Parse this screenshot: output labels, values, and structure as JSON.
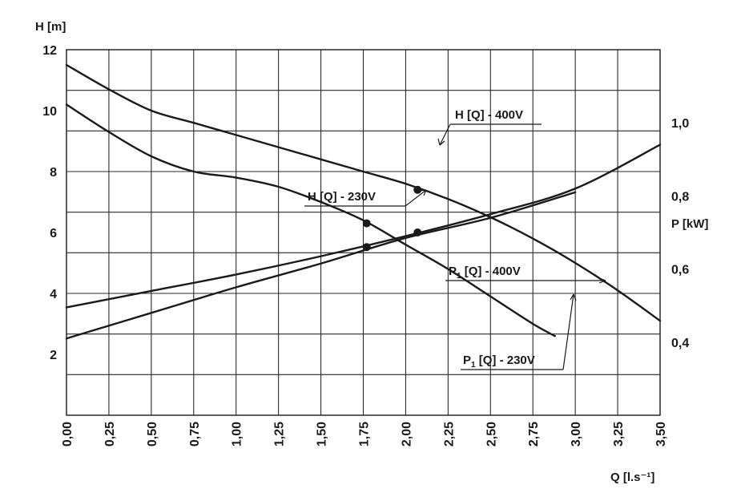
{
  "chart_data": {
    "type": "line",
    "xlabel": "Q [l.s⁻¹]",
    "ylabel_left": "H [m]",
    "ylabel_right": "P [kW]",
    "xlim": [
      0,
      3.5
    ],
    "ylim_left": [
      0,
      12
    ],
    "ylim_right": [
      0.2,
      1.2
    ],
    "grid": true,
    "x_ticks": [
      "0,00",
      "0,25",
      "0,50",
      "0,75",
      "1,00",
      "1,25",
      "1,50",
      "1,75",
      "2,00",
      "2,25",
      "2,50",
      "2,75",
      "3,00",
      "3,25",
      "3,50"
    ],
    "y_ticks_left": [
      "2",
      "4",
      "6",
      "8",
      "10",
      "12"
    ],
    "y_ticks_right": [
      "0,4",
      "0,6",
      "0,8",
      "1,0"
    ],
    "series": [
      {
        "name": "H [Q] - 400V",
        "axis": "left",
        "x": [
          0,
          0.25,
          0.5,
          0.75,
          1.0,
          1.25,
          1.5,
          1.75,
          2.0,
          2.25,
          2.5,
          2.75,
          3.0,
          3.25,
          3.5
        ],
        "y": [
          11.5,
          10.7,
          10.0,
          9.6,
          9.2,
          8.8,
          8.4,
          8.0,
          7.6,
          7.1,
          6.5,
          5.8,
          5.0,
          4.1,
          3.1
        ],
        "markers": [
          {
            "x": 2.07,
            "y": 7.4
          }
        ]
      },
      {
        "name": "H [Q] - 230V",
        "axis": "left",
        "x": [
          0,
          0.25,
          0.5,
          0.75,
          1.0,
          1.25,
          1.5,
          1.75,
          2.0,
          2.25,
          2.5,
          2.75,
          2.88
        ],
        "y": [
          10.2,
          9.3,
          8.5,
          8.0,
          7.8,
          7.5,
          7.0,
          6.4,
          5.6,
          4.8,
          3.9,
          3.0,
          2.6
        ],
        "markers": [
          {
            "x": 1.77,
            "y": 6.3
          }
        ]
      },
      {
        "name": "P1 [Q] - 400V",
        "axis": "right",
        "x": [
          0,
          0.5,
          1.0,
          1.5,
          2.0,
          2.5,
          3.0,
          3.5
        ],
        "y": [
          0.495,
          0.54,
          0.585,
          0.635,
          0.69,
          0.75,
          0.82,
          0.94
        ],
        "markers": [
          {
            "x": 2.07,
            "y": 0.7
          }
        ]
      },
      {
        "name": "P1 [Q] - 230V",
        "axis": "right",
        "x": [
          0,
          0.5,
          1.0,
          1.5,
          2.0,
          2.5,
          3.0
        ],
        "y": [
          0.41,
          0.48,
          0.55,
          0.615,
          0.685,
          0.74,
          0.81
        ],
        "markers": [
          {
            "x": 1.77,
            "y": 0.66
          }
        ]
      }
    ],
    "labels": {
      "h400": "H [Q] - 400V",
      "h230": "H [Q] - 230V",
      "p400_main": "P",
      "p400_sub": "1",
      "p400_rest": " [Q] - 400V",
      "p230_main": "P",
      "p230_sub": "1",
      "p230_rest": " [Q] - 230V"
    }
  }
}
